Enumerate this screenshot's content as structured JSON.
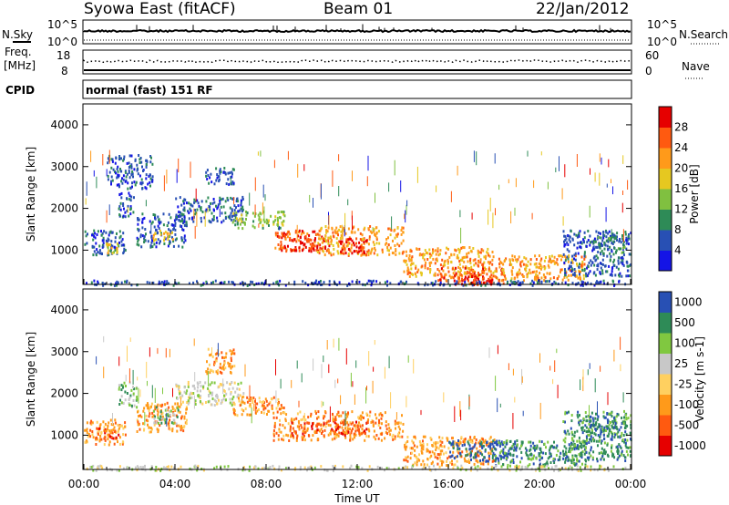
{
  "header": {
    "radar": "Syowa East (fitACF)",
    "beam": "Beam 01",
    "date": "22/Jan/2012"
  },
  "status": {
    "nsky_label": "N.Sky",
    "nsearch_label": "N.Search",
    "freq_label": "Freq.",
    "freq_unit": "[MHz]",
    "nave_label": "Nave",
    "cpid_label": "CPID",
    "cpid_value": "normal (fast) 151 RF",
    "noise_left_ticks": [
      "10^5",
      "10^0"
    ],
    "noise_right_ticks": [
      "10^5",
      "10^0"
    ],
    "freq_ticks": [
      "18",
      "8"
    ],
    "nave_ticks": [
      "60",
      "0"
    ]
  },
  "x_axis": {
    "label": "Time UT",
    "ticks": [
      "00:00",
      "04:00",
      "08:00",
      "12:00",
      "16:00",
      "20:00",
      "00:00"
    ]
  },
  "colors": {
    "power": [
      "#1414e6",
      "#2850b4",
      "#2e8b57",
      "#80c040",
      "#e6c820",
      "#ff9a1a",
      "#ff5a10",
      "#e60000"
    ],
    "velocity": [
      "#e60000",
      "#ff5a10",
      "#ff9a1a",
      "#ffd060",
      "#c8c8c8",
      "#80c840",
      "#2e8b57",
      "#2850b4"
    ]
  },
  "chart_data": [
    {
      "type": "heatmap",
      "title": "Power",
      "xlabel": "Time UT",
      "ylabel": "Slant Range [km]",
      "xlim": [
        0,
        24
      ],
      "ylim": [
        180,
        4500
      ],
      "y_ticks": [
        "4000",
        "3000",
        "2000",
        "1000"
      ],
      "colorbar_label": "Power [dB]",
      "colorbar_ticks": [
        "28",
        "24",
        "20",
        "16",
        "12",
        "8",
        "4"
      ],
      "blobs": [
        {
          "t0": 0.0,
          "t1": 1.8,
          "r0": 900,
          "r1": 1500,
          "level": 1
        },
        {
          "t0": 0.7,
          "t1": 1.5,
          "r0": 950,
          "r1": 1200,
          "level": 4
        },
        {
          "t0": 1.5,
          "t1": 2.2,
          "r0": 1800,
          "r1": 2400,
          "level": 1
        },
        {
          "t0": 2.3,
          "t1": 4.5,
          "r0": 1100,
          "r1": 1900,
          "level": 1
        },
        {
          "t0": 3.0,
          "t1": 3.9,
          "r0": 1250,
          "r1": 1500,
          "level": 4
        },
        {
          "t0": 1.0,
          "t1": 3.0,
          "r0": 2500,
          "r1": 3300,
          "level": 1
        },
        {
          "t0": 4.0,
          "t1": 7.0,
          "r0": 1700,
          "r1": 2300,
          "level": 1
        },
        {
          "t0": 5.3,
          "t1": 6.6,
          "r0": 2600,
          "r1": 3000,
          "level": 1
        },
        {
          "t0": 6.5,
          "t1": 8.8,
          "r0": 1550,
          "r1": 1950,
          "level": 3
        },
        {
          "t0": 8.3,
          "t1": 10.2,
          "r0": 1000,
          "r1": 1500,
          "level": 6
        },
        {
          "t0": 9.0,
          "t1": 10.8,
          "r0": 1000,
          "r1": 1400,
          "level": 7
        },
        {
          "t0": 10.2,
          "t1": 14.0,
          "r0": 900,
          "r1": 1600,
          "level": 5
        },
        {
          "t0": 11.2,
          "t1": 12.5,
          "r0": 950,
          "r1": 1300,
          "level": 7
        },
        {
          "t0": 14.0,
          "t1": 18.0,
          "r0": 400,
          "r1": 1100,
          "level": 5
        },
        {
          "t0": 15.5,
          "t1": 18.5,
          "r0": 200,
          "r1": 600,
          "level": 6
        },
        {
          "t0": 16.5,
          "t1": 18.0,
          "r0": 200,
          "r1": 400,
          "level": 7
        },
        {
          "t0": 18.0,
          "t1": 22.0,
          "r0": 300,
          "r1": 900,
          "level": 5
        },
        {
          "t0": 21.0,
          "t1": 24.0,
          "r0": 400,
          "r1": 1500,
          "level": 1
        },
        {
          "t0": 22.5,
          "t1": 23.8,
          "r0": 900,
          "r1": 1400,
          "level": 2
        },
        {
          "t0": 0.0,
          "t1": 24.0,
          "r0": 180,
          "r1": 300,
          "level": 1
        }
      ]
    },
    {
      "type": "heatmap",
      "title": "Velocity",
      "xlabel": "Time UT",
      "ylabel": "Slant Range [km]",
      "xlim": [
        0,
        24
      ],
      "ylim": [
        180,
        4500
      ],
      "y_ticks": [
        "4000",
        "3000",
        "2000",
        "1000"
      ],
      "colorbar_label": "Velocity [m s-1]",
      "colorbar_ticks": [
        "1000",
        "500",
        "100",
        "25",
        "-25",
        "-100",
        "-500",
        "-1000"
      ],
      "blobs": [
        {
          "t0": 0.0,
          "t1": 1.8,
          "r0": 800,
          "r1": 1400,
          "level": 2
        },
        {
          "t0": 0.5,
          "t1": 1.5,
          "r0": 900,
          "r1": 1200,
          "level": 1
        },
        {
          "t0": 1.5,
          "t1": 2.3,
          "r0": 1700,
          "r1": 2300,
          "level": 5
        },
        {
          "t0": 2.3,
          "t1": 4.5,
          "r0": 1100,
          "r1": 1800,
          "level": 2
        },
        {
          "t0": 3.0,
          "t1": 4.2,
          "r0": 1300,
          "r1": 1700,
          "level": 5
        },
        {
          "t0": 4.0,
          "t1": 7.0,
          "r0": 1750,
          "r1": 2300,
          "level": 4
        },
        {
          "t0": 5.3,
          "t1": 6.6,
          "r0": 2500,
          "r1": 3100,
          "level": 2
        },
        {
          "t0": 6.5,
          "t1": 8.8,
          "r0": 1500,
          "r1": 1950,
          "level": 2
        },
        {
          "t0": 8.3,
          "t1": 14.0,
          "r0": 900,
          "r1": 1600,
          "level": 2
        },
        {
          "t0": 9.0,
          "t1": 12.5,
          "r0": 1000,
          "r1": 1350,
          "level": 1
        },
        {
          "t0": 14.0,
          "t1": 18.0,
          "r0": 300,
          "r1": 1000,
          "level": 2
        },
        {
          "t0": 16.0,
          "t1": 19.0,
          "r0": 400,
          "r1": 900,
          "level": 7
        },
        {
          "t0": 18.0,
          "t1": 22.0,
          "r0": 300,
          "r1": 900,
          "level": 6
        },
        {
          "t0": 21.0,
          "t1": 24.0,
          "r0": 400,
          "r1": 1600,
          "level": 6
        },
        {
          "t0": 22.0,
          "t1": 23.8,
          "r0": 900,
          "r1": 1500,
          "level": 6
        },
        {
          "t0": 0.0,
          "t1": 24.0,
          "r0": 180,
          "r1": 300,
          "level": 4
        }
      ]
    }
  ]
}
